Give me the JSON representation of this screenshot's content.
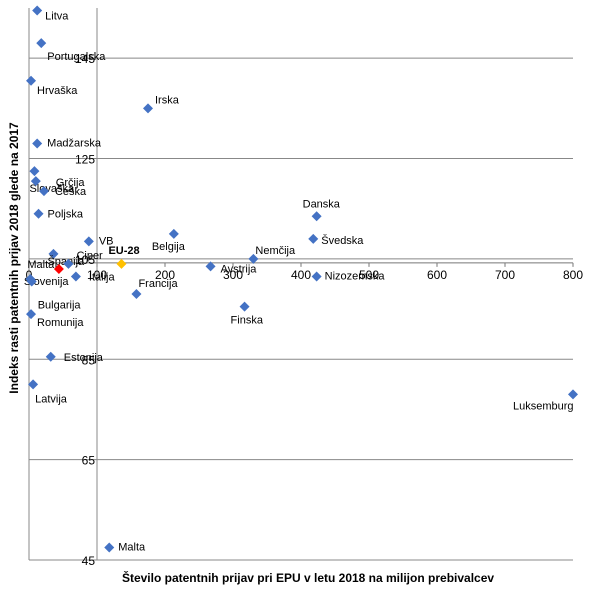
{
  "chart_data": {
    "type": "scatter",
    "xlabel": "Število patentnih prijav pri EPU v letu 2018 na milijon prebivalcev",
    "ylabel": "Indeks rasti patentnih prijav 2018 glede na 2017",
    "xlim": [
      0,
      800
    ],
    "ylim": [
      45,
      155
    ],
    "x_ticks": [
      "0",
      "100",
      "200",
      "300",
      "400",
      "500",
      "600",
      "700",
      "800"
    ],
    "y_ticks": [
      "45",
      "65",
      "85",
      "105",
      "125",
      "145"
    ],
    "x_gridlines": [
      0,
      100
    ],
    "y_gridlines": [
      45,
      65,
      85,
      105,
      125,
      145
    ],
    "colors": {
      "default": "#4472c4",
      "slovenija": "#ff0000",
      "eu28": "#ffc000",
      "grid": "#888888"
    },
    "points": [
      {
        "label": "Litva",
        "x": 12,
        "y": 154.5,
        "color": "#4472c4"
      },
      {
        "label": "Portugalska",
        "x": 18,
        "y": 148,
        "color": "#4472c4"
      },
      {
        "label": "Hrvaška",
        "x": 3,
        "y": 140.5,
        "color": "#4472c4"
      },
      {
        "label": "Irska",
        "x": 175,
        "y": 135,
        "color": "#4472c4"
      },
      {
        "label": "Madžarska",
        "x": 12,
        "y": 128,
        "color": "#4472c4"
      },
      {
        "label": "Slovaška",
        "x": 8,
        "y": 122.5,
        "color": "#4472c4"
      },
      {
        "label": "Grčija",
        "x": 10,
        "y": 120.5,
        "color": "#4472c4"
      },
      {
        "label": "Češka",
        "x": 22,
        "y": 118.5,
        "color": "#4472c4"
      },
      {
        "label": "Poljska",
        "x": 14,
        "y": 114,
        "color": "#4472c4"
      },
      {
        "label": "Danska",
        "x": 423,
        "y": 113.5,
        "color": "#4472c4"
      },
      {
        "label": "Belgija",
        "x": 213,
        "y": 110,
        "color": "#4472c4"
      },
      {
        "label": "VB",
        "x": 88,
        "y": 108.5,
        "color": "#4472c4"
      },
      {
        "label": "Švedska",
        "x": 418,
        "y": 109,
        "color": "#4472c4"
      },
      {
        "label": "Španija",
        "x": 36,
        "y": 106,
        "color": "#4472c4"
      },
      {
        "label": "Ciper",
        "x": 58,
        "y": 104,
        "color": "#4472c4"
      },
      {
        "label": "EU-28",
        "x": 136,
        "y": 104,
        "color": "#ffc000"
      },
      {
        "label": "Nemčija",
        "x": 330,
        "y": 105,
        "color": "#4472c4"
      },
      {
        "label": "Avstrija",
        "x": 267,
        "y": 103.5,
        "color": "#4472c4"
      },
      {
        "label": "Slovenija",
        "x": 44,
        "y": 103,
        "color": "#ff0000"
      },
      {
        "label": "Italija",
        "x": 69,
        "y": 101.5,
        "color": "#4472c4"
      },
      {
        "label": "Nizozemska",
        "x": 423,
        "y": 101.5,
        "color": "#4472c4"
      },
      {
        "label": "Malta",
        "x": 2,
        "y": 101,
        "color": "#4472c4"
      },
      {
        "label": "Bulgarija",
        "x": 4,
        "y": 100.5,
        "color": "#4472c4"
      },
      {
        "label": "Francija",
        "x": 158,
        "y": 98,
        "color": "#4472c4"
      },
      {
        "label": "Finska",
        "x": 317,
        "y": 95.5,
        "color": "#4472c4"
      },
      {
        "label": "Romunija",
        "x": 3,
        "y": 94,
        "color": "#4472c4"
      },
      {
        "label": "Estonija",
        "x": 32,
        "y": 85.5,
        "color": "#4472c4"
      },
      {
        "label": "Latvija",
        "x": 6,
        "y": 80,
        "color": "#4472c4"
      },
      {
        "label": "Luksemburg",
        "x": 800,
        "y": 78,
        "color": "#4472c4"
      },
      {
        "label": "Malta",
        "x": 118,
        "y": 47.5,
        "color": "#4472c4"
      }
    ]
  }
}
